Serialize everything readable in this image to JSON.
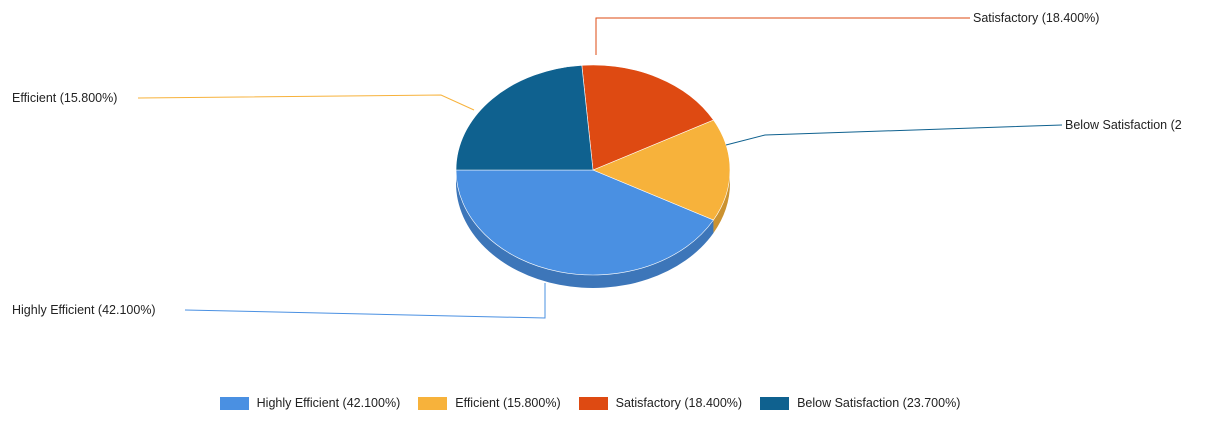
{
  "chart_data": {
    "type": "pie",
    "title": "",
    "slices": [
      {
        "label": "Highly Efficient",
        "value": 42.1,
        "display": "Highly Efficient (42.100%)",
        "color": "#4A90E2"
      },
      {
        "label": "Efficient",
        "value": 15.8,
        "display": "Efficient (15.800%)",
        "color": "#F7B23B"
      },
      {
        "label": "Satisfactory",
        "value": 18.4,
        "display": "Satisfactory (18.400%)",
        "color": "#DE4A12"
      },
      {
        "label": "Below Satisfaction",
        "value": 23.7,
        "display": "Below Satisfaction (23.700%)",
        "color": "#0F618F"
      }
    ],
    "callouts": [
      {
        "text": "Highly Efficient (42.100%)"
      },
      {
        "text": "Efficient (15.800%)"
      },
      {
        "text": "Satisfactory (18.400%)"
      },
      {
        "text": "Below Satisfaction (2"
      }
    ],
    "legend_position": "bottom"
  }
}
